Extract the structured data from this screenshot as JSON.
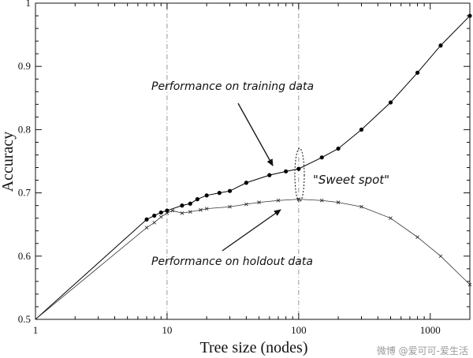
{
  "chart_data": {
    "type": "line",
    "xlabel": "Tree size (nodes)",
    "ylabel": "Accuracy",
    "xscale": "log",
    "xlim": [
      1,
      2000
    ],
    "ylim": [
      0.5,
      1.0
    ],
    "x_ticks": [
      1,
      10,
      100,
      1000
    ],
    "x_tick_labels": [
      "1",
      "10",
      "100",
      "1000"
    ],
    "y_ticks": [
      0.5,
      0.6,
      0.7,
      0.8,
      0.9,
      1.0
    ],
    "y_tick_labels": [
      "0.5",
      "0.6",
      "0.7",
      "0.8",
      "0.9",
      "1"
    ],
    "grid": "vertical dash-dot at 10 and 100",
    "series": [
      {
        "key": "training",
        "marker": "dot",
        "color": "#000000",
        "x": [
          1,
          7,
          8,
          9,
          10,
          13,
          15,
          17,
          20,
          25,
          30,
          40,
          60,
          80,
          100,
          150,
          200,
          300,
          500,
          800,
          1200,
          2000
        ],
        "y": [
          0.5,
          0.658,
          0.664,
          0.669,
          0.672,
          0.68,
          0.683,
          0.69,
          0.696,
          0.7,
          0.703,
          0.716,
          0.728,
          0.734,
          0.738,
          0.756,
          0.77,
          0.8,
          0.843,
          0.89,
          0.933,
          0.98
        ]
      },
      {
        "key": "holdout",
        "marker": "x",
        "color": "#333333",
        "x": [
          1,
          7,
          8,
          9,
          10,
          11,
          13,
          15,
          18,
          20,
          30,
          40,
          50,
          70,
          100,
          150,
          200,
          300,
          500,
          800,
          1200,
          2000
        ],
        "y": [
          0.5,
          0.645,
          0.653,
          0.662,
          0.668,
          0.672,
          0.668,
          0.67,
          0.673,
          0.675,
          0.678,
          0.682,
          0.685,
          0.688,
          0.69,
          0.688,
          0.685,
          0.678,
          0.66,
          0.63,
          0.6,
          0.555
        ]
      }
    ],
    "annotations": {
      "training_label": "Performance on training data",
      "holdout_label": "Performance on holdout data",
      "sweet_spot": "\"Sweet spot\""
    }
  },
  "watermark": "微博 @爱可可-爱生活"
}
